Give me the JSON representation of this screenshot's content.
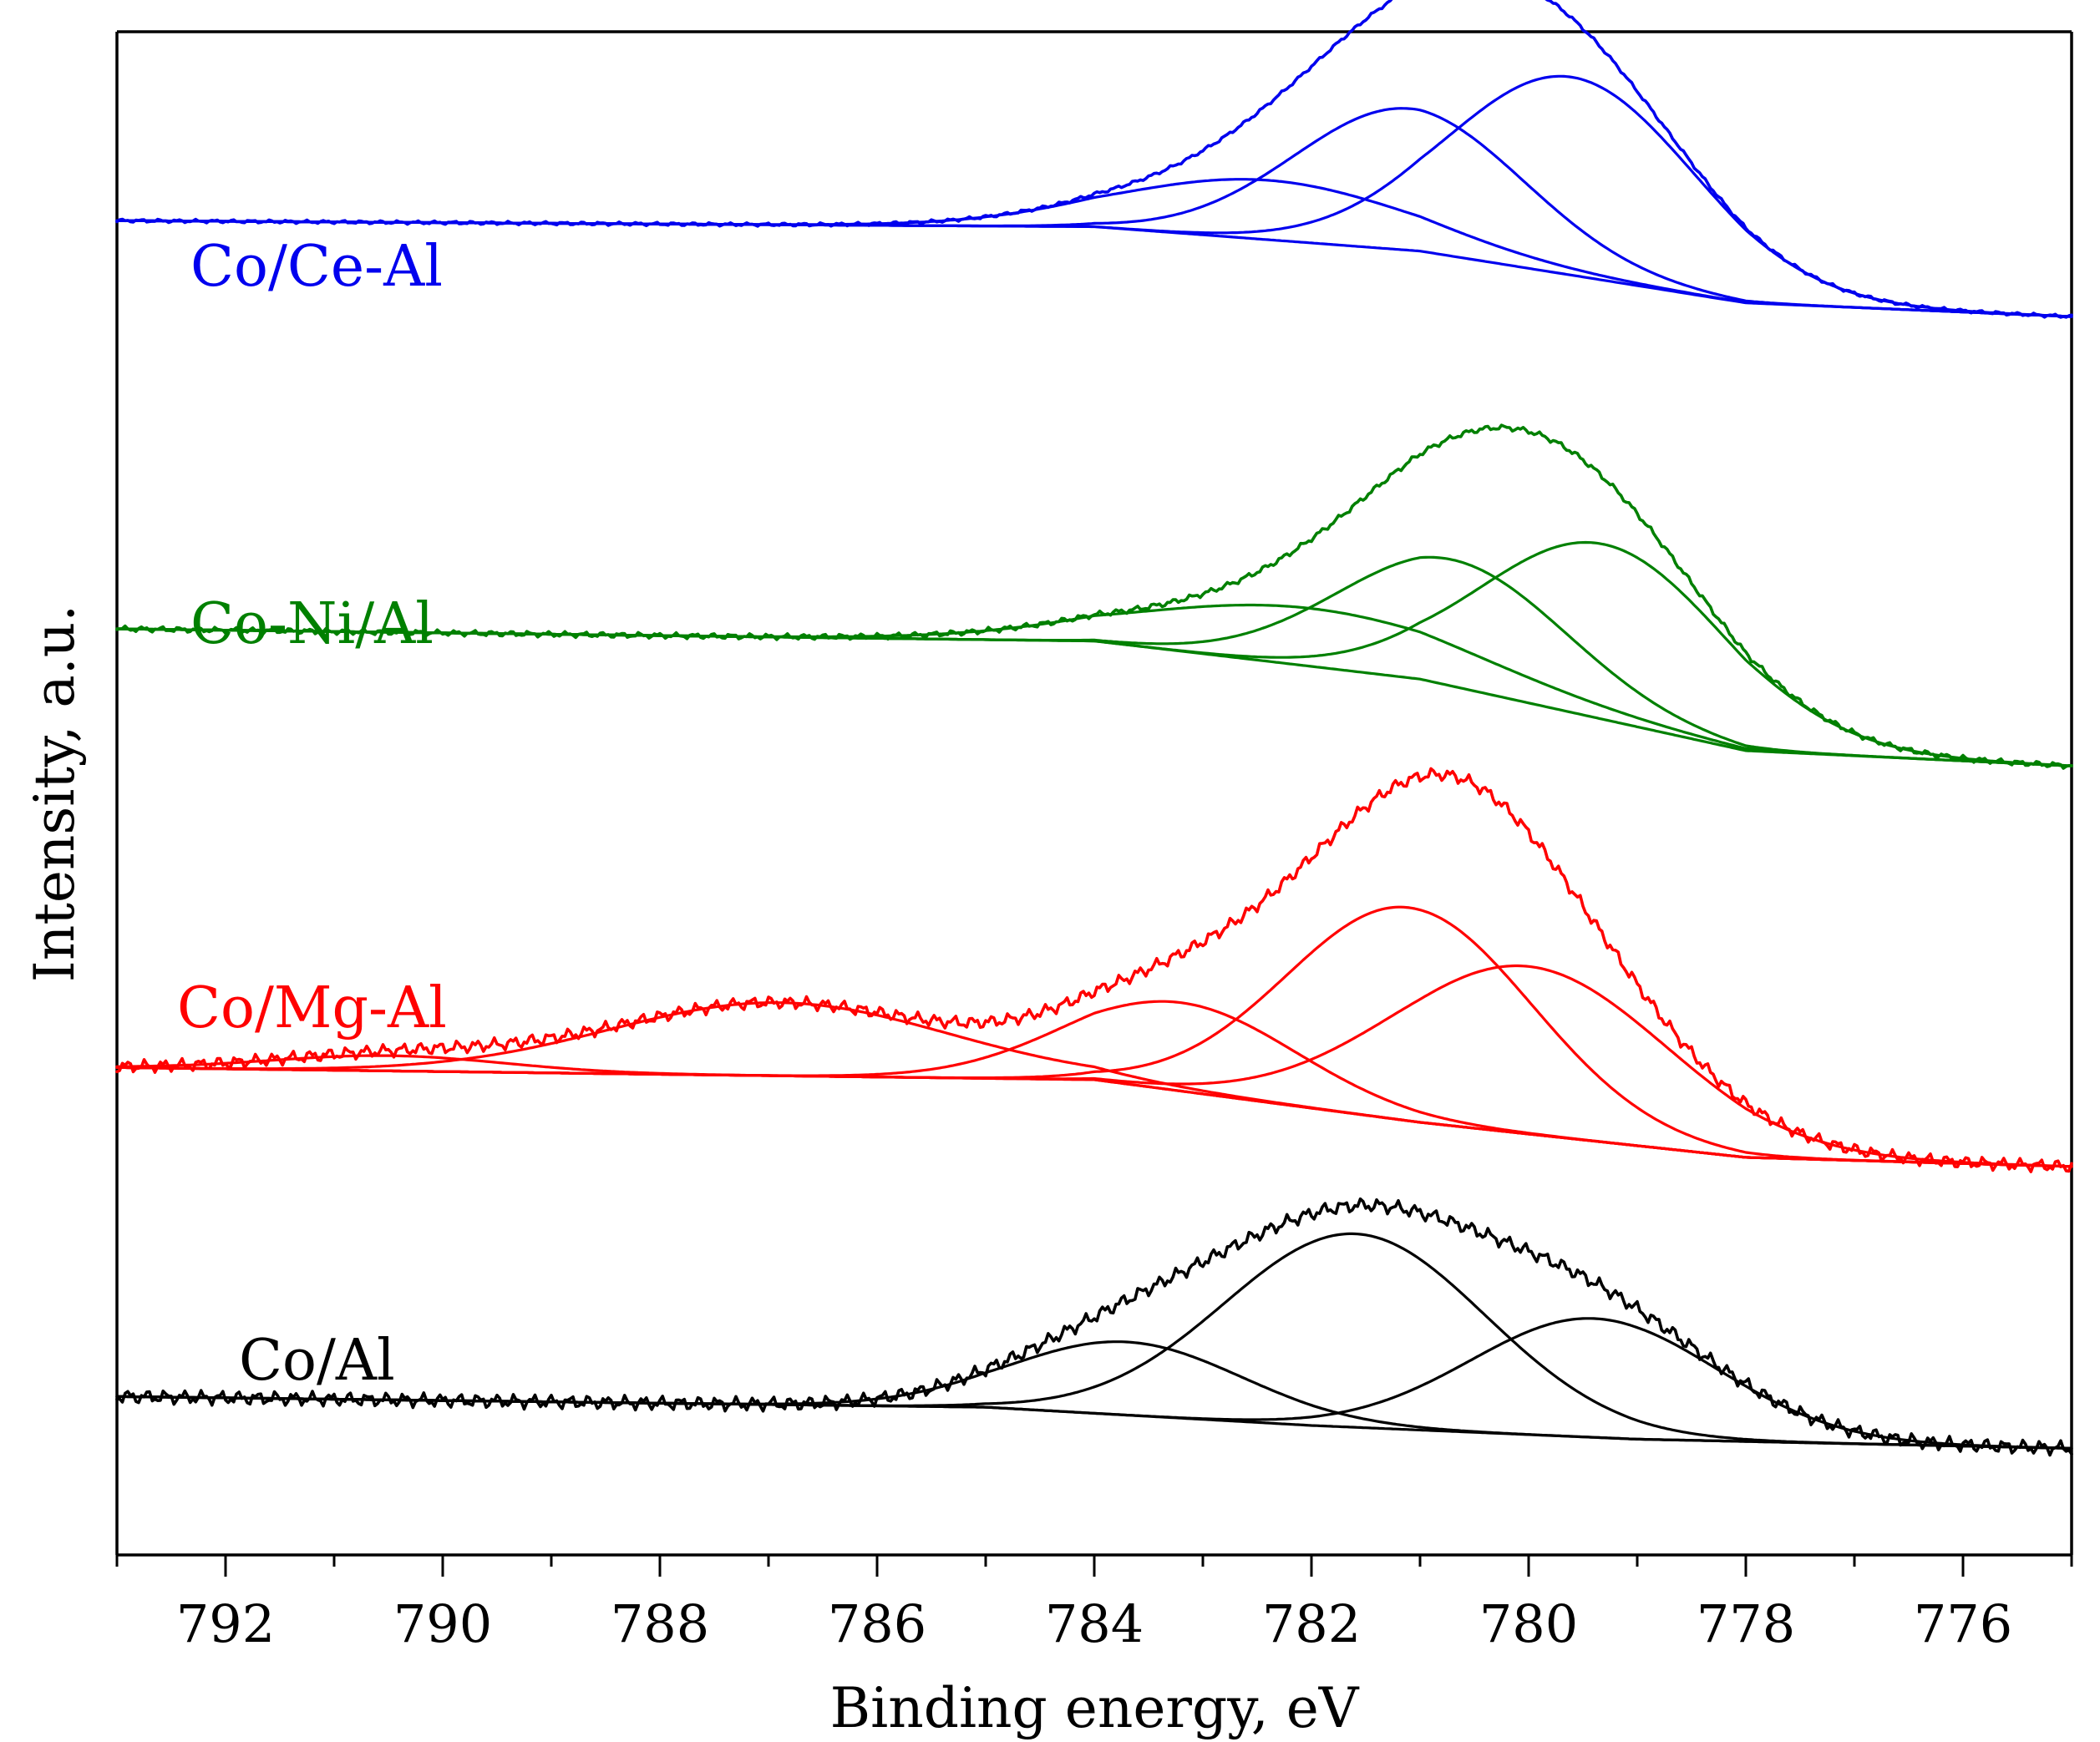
{
  "chart_data": {
    "type": "line",
    "title": "",
    "xlabel": "Binding energy, eV",
    "ylabel": "Intensity, a.u.",
    "xlim": [
      793,
      775
    ],
    "x_reversed": true,
    "y_ticks_shown": false,
    "xticks": [
      792,
      790,
      788,
      786,
      784,
      782,
      780,
      778,
      776
    ],
    "xtick_labels": [
      "792",
      "790",
      "788",
      "786",
      "784",
      "782",
      "780",
      "778",
      "776"
    ],
    "ylim": [
      0,
      10
    ],
    "legend": "inline text labels at left of each trace",
    "series": [
      {
        "name": "Co/Ce-Al",
        "color": "#0000ee",
        "baseline": [
          [
            793,
            8.76
          ],
          [
            784,
            8.72
          ],
          [
            781,
            8.56
          ],
          [
            778,
            8.22
          ],
          [
            775,
            8.13
          ]
        ],
        "components": [
          {
            "center": 779.6,
            "height": 1.3,
            "width": 1.6
          },
          {
            "center": 781.1,
            "height": 0.93,
            "width": 1.5
          },
          {
            "center": 782.4,
            "height": 0.39,
            "width": 1.9
          }
        ],
        "noise": 0.012
      },
      {
        "name": "Co-Ni/Al",
        "color": "#008000",
        "baseline": [
          [
            793,
            6.08
          ],
          [
            784,
            6.0
          ],
          [
            781,
            5.75
          ],
          [
            778,
            5.28
          ],
          [
            775,
            5.18
          ]
        ],
        "components": [
          {
            "center": 779.3,
            "height": 1.15,
            "width": 1.6
          },
          {
            "center": 780.7,
            "height": 0.83,
            "width": 1.5
          },
          {
            "center": 782.0,
            "height": 0.38,
            "width": 2.2
          }
        ],
        "noise": 0.02
      },
      {
        "name": "Co/Mg-Al",
        "color": "#ff0000",
        "baseline": [
          [
            793,
            3.2
          ],
          [
            784,
            3.12
          ],
          [
            781,
            2.84
          ],
          [
            778,
            2.61
          ],
          [
            775,
            2.55
          ]
        ],
        "components": [
          {
            "center": 781.1,
            "height": 1.4,
            "width": 1.6
          },
          {
            "center": 780.0,
            "height": 1.1,
            "width": 1.8
          },
          {
            "center": 783.2,
            "height": 0.58,
            "width": 1.5
          },
          {
            "center": 786.9,
            "height": 0.48,
            "width": 2.2
          },
          {
            "center": 790.5,
            "height": 0.1,
            "width": 1.5
          }
        ],
        "noise": 0.045
      },
      {
        "name": "Co/Al",
        "color": "#000000",
        "baseline": [
          [
            793,
            1.04
          ],
          [
            785,
            0.97
          ],
          [
            782,
            0.85
          ],
          [
            779,
            0.76
          ],
          [
            775,
            0.7
          ]
        ],
        "components": [
          {
            "center": 781.6,
            "height": 1.27,
            "width": 1.7
          },
          {
            "center": 779.4,
            "height": 0.78,
            "width": 1.6
          },
          {
            "center": 783.7,
            "height": 0.48,
            "width": 1.5
          }
        ],
        "noise": 0.05
      }
    ]
  }
}
